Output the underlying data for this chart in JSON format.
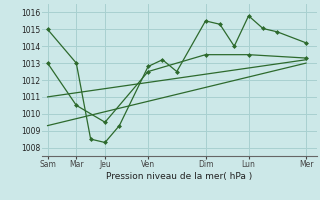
{
  "background_color": "#cce8e8",
  "grid_color": "#a8d0d0",
  "line_color": "#2d6a2d",
  "xlabel": "Pression niveau de la mer( hPa )",
  "ylim": [
    1007.5,
    1016.5
  ],
  "yticks": [
    1008,
    1009,
    1010,
    1011,
    1012,
    1013,
    1014,
    1015,
    1016
  ],
  "day_labels": [
    "Sam",
    "Mar",
    "Jeu",
    "Ven",
    "Dim",
    "Lun",
    "Mer"
  ],
  "day_positions": [
    0,
    24,
    48,
    84,
    132,
    168,
    216
  ],
  "xlim": [
    -5,
    225
  ],
  "series1_x": [
    0,
    24,
    36,
    48,
    60,
    84,
    96,
    108,
    132,
    144,
    156,
    168,
    180,
    192,
    216
  ],
  "series1_y": [
    1015.0,
    1013.0,
    1008.5,
    1008.3,
    1009.3,
    1012.8,
    1013.2,
    1012.5,
    1015.5,
    1015.3,
    1014.0,
    1015.8,
    1015.05,
    1014.85,
    1014.2
  ],
  "series2_x": [
    0,
    24,
    48,
    84,
    132,
    168,
    216
  ],
  "series2_y": [
    1013.0,
    1010.5,
    1009.5,
    1012.5,
    1013.5,
    1013.5,
    1013.3
  ],
  "trend1_x": [
    0,
    216
  ],
  "trend1_y": [
    1011.0,
    1013.2
  ],
  "trend2_x": [
    0,
    216
  ],
  "trend2_y": [
    1009.3,
    1013.0
  ]
}
